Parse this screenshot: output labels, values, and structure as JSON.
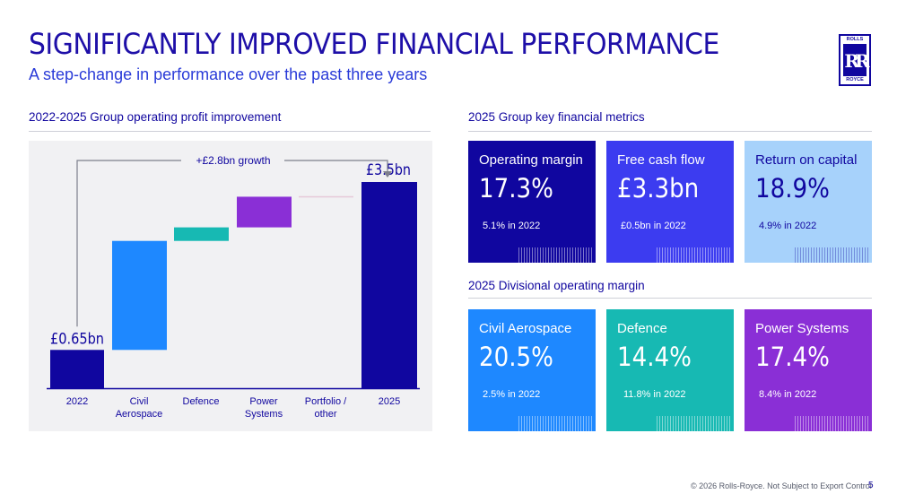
{
  "header": {
    "title": "SIGNIFICANTLY IMPROVED FINANCIAL PERFORMANCE",
    "subtitle": "A step-change in performance over the past three years"
  },
  "logo": {
    "top_text": "ROLLS",
    "monogram": "RR",
    "bottom_text": "ROYCE"
  },
  "sections": {
    "chart_heading": "2022-2025 Group operating profit improvement",
    "metrics_heading": "2025 Group key financial metrics",
    "divisional_heading": "2025 Divisional operating margin"
  },
  "chart_data": {
    "type": "bar",
    "subtype": "waterfall",
    "categories": [
      "2022",
      "Civil\nAerospace",
      "Defence",
      "Power\nSystems",
      "Portfolio /\nother",
      "2025"
    ],
    "steps": [
      {
        "kind": "total",
        "value": 0.65,
        "color": "#10069f"
      },
      {
        "kind": "delta",
        "value": 1.85,
        "color": "#1e88ff"
      },
      {
        "kind": "delta",
        "value": 0.23,
        "color": "#17b9b3"
      },
      {
        "kind": "delta",
        "value": 0.52,
        "color": "#8a2fd6"
      },
      {
        "kind": "delta",
        "value": 0.01,
        "color": "#e6c9d8"
      },
      {
        "kind": "total",
        "value": 3.5,
        "color": "#10069f"
      }
    ],
    "data_labels": [
      "£0.65bn",
      "£3.5bn"
    ],
    "annotation": "+£2.8bn growth",
    "ylim": [
      0,
      4.2
    ],
    "grid": false
  },
  "metrics": [
    {
      "label": "Operating margin",
      "value": "17.3%",
      "prev": "5.1% in 2022",
      "color": "#10069f"
    },
    {
      "label": "Free cash flow",
      "value": "£3.3bn",
      "prev": "£0.5bn in 2022",
      "color": "#3c3cf0"
    },
    {
      "label": "Return on capital",
      "value": "18.9%",
      "prev": "4.9% in 2022",
      "color": "#a7d2fb"
    }
  ],
  "divisions": [
    {
      "label": "Civil Aerospace",
      "value": "20.5%",
      "prev": "2.5% in 2022",
      "color": "#1e88ff"
    },
    {
      "label": "Defence",
      "value": "14.4%",
      "prev": "11.8% in 2022",
      "color": "#17b9b3"
    },
    {
      "label": "Power Systems",
      "value": "17.4%",
      "prev": "8.4% in 2022",
      "color": "#8a2fd6"
    }
  ],
  "footer": {
    "copyright": "© 2026 Rolls-Royce. Not Subject to Export Control",
    "page": "5"
  }
}
